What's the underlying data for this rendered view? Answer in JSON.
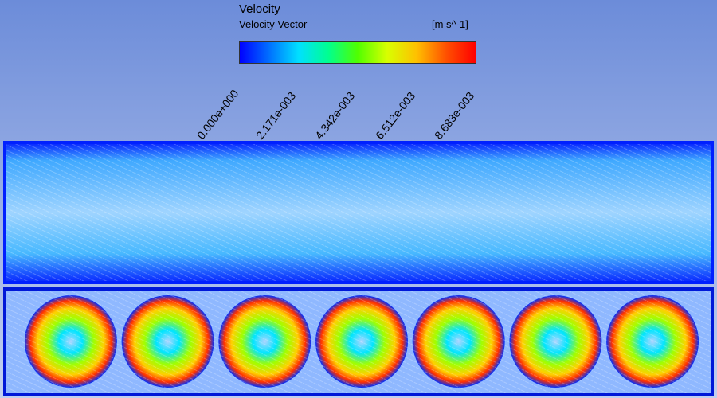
{
  "legend": {
    "title": "Velocity",
    "subtitle": "Velocity Vector",
    "units": "[m s^-1]",
    "tick_labels": [
      "0.000e+000",
      "2.171e-003",
      "4.342e-003",
      "6.512e-003",
      "8.683e-003"
    ],
    "colormap": [
      "#0000ff",
      "#0070ff",
      "#00e0ff",
      "#00ff90",
      "#50ff00",
      "#d8ff00",
      "#ffc000",
      "#ff5000",
      "#ff0000"
    ]
  },
  "plot": {
    "upper_panel_color": "#33a8ff",
    "lower_panel_vortex_count": 7,
    "lower_panel_colors": [
      "#0018ff",
      "#00e5ff",
      "#a0ff00",
      "#ffd000",
      "#ff3000"
    ]
  }
}
